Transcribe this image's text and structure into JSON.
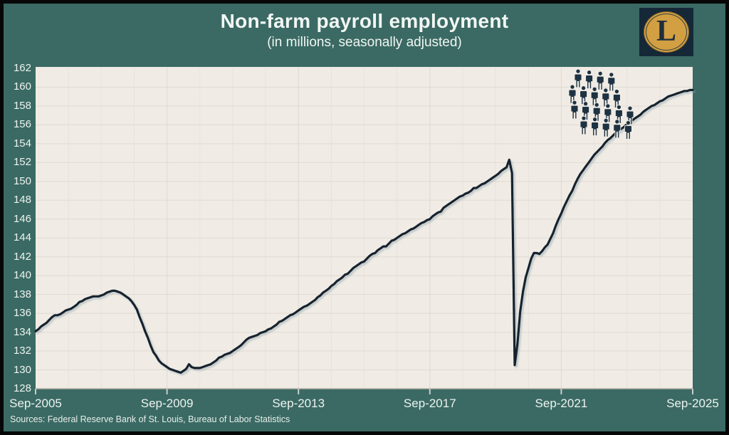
{
  "header": {
    "title": "Non-farm payroll employment",
    "subtitle": "(in millions, seasonally adjusted)"
  },
  "logo": {
    "letter": "L"
  },
  "footer": {
    "sources": "Sources: Federal Reserve Bank of St. Louis, Bureau of Labor Statistics"
  },
  "colors": {
    "background": "#3a6a63",
    "border": "#070707",
    "plot_bg": "#f0ece5",
    "grid_h": "#dfd9d1",
    "grid_v_minor": "#e7e2da",
    "grid_v_major": "#ded8d0",
    "axis": "#b3aea6",
    "tick": "#c7cec9",
    "line": "#18222e",
    "line_shadow": "#8fa2ab",
    "icon": "#1d3242",
    "text": "#f2f6f4",
    "logo_gold": "#d2a043",
    "logo_navy": "#152838"
  },
  "chart_data": {
    "type": "line",
    "title": "Non-farm payroll employment",
    "subtitle": "(in millions, seasonally adjusted)",
    "xlabel": "",
    "ylabel": "",
    "ylim": [
      128,
      162
    ],
    "y_ticks": [
      128,
      130,
      132,
      134,
      136,
      138,
      140,
      142,
      144,
      146,
      148,
      150,
      152,
      154,
      156,
      158,
      160,
      162
    ],
    "x_range": [
      "Sep-2005",
      "Sep-2025"
    ],
    "x_frequency": "monthly",
    "x_ticks": [
      {
        "label": "Sep-2005",
        "month": 0
      },
      {
        "label": "Sep-2009",
        "month": 48
      },
      {
        "label": "Sep-2013",
        "month": 96
      },
      {
        "label": "Sep-2017",
        "month": 144
      },
      {
        "label": "Sep-2021",
        "month": 192
      },
      {
        "label": "Sep-2025",
        "month": 240
      }
    ],
    "grid": "on",
    "legend": "none",
    "series": [
      {
        "name": "Non-farm payroll employment",
        "values": [
          134.1,
          134.3,
          134.6,
          134.8,
          135.0,
          135.3,
          135.6,
          135.8,
          135.8,
          135.9,
          136.1,
          136.3,
          136.4,
          136.5,
          136.7,
          136.9,
          137.2,
          137.3,
          137.5,
          137.6,
          137.7,
          137.8,
          137.8,
          137.8,
          137.9,
          138.0,
          138.2,
          138.3,
          138.4,
          138.4,
          138.3,
          138.2,
          138.0,
          137.8,
          137.6,
          137.3,
          136.9,
          136.4,
          135.6,
          134.9,
          134.1,
          133.4,
          132.6,
          131.9,
          131.5,
          131.0,
          130.7,
          130.5,
          130.3,
          130.1,
          130.0,
          129.9,
          129.8,
          129.7,
          129.9,
          130.1,
          130.6,
          130.3,
          130.2,
          130.2,
          130.2,
          130.3,
          130.4,
          130.5,
          130.6,
          130.8,
          131.0,
          131.3,
          131.4,
          131.6,
          131.7,
          131.8,
          132.0,
          132.2,
          132.4,
          132.6,
          132.9,
          133.2,
          133.4,
          133.5,
          133.6,
          133.7,
          133.9,
          134.0,
          134.1,
          134.3,
          134.4,
          134.6,
          134.8,
          135.1,
          135.2,
          135.4,
          135.6,
          135.8,
          135.9,
          136.1,
          136.3,
          136.5,
          136.7,
          136.8,
          137.0,
          137.2,
          137.4,
          137.7,
          137.9,
          138.2,
          138.4,
          138.6,
          138.9,
          139.1,
          139.4,
          139.6,
          139.8,
          140.1,
          140.2,
          140.5,
          140.8,
          141.0,
          141.2,
          141.4,
          141.5,
          141.8,
          142.1,
          142.3,
          142.4,
          142.7,
          142.9,
          143.1,
          143.1,
          143.4,
          143.7,
          143.8,
          144.0,
          144.2,
          144.4,
          144.5,
          144.7,
          144.9,
          145.0,
          145.2,
          145.4,
          145.6,
          145.7,
          145.9,
          146.0,
          146.3,
          146.5,
          146.7,
          146.8,
          147.2,
          147.4,
          147.6,
          147.8,
          148.0,
          148.2,
          148.4,
          148.5,
          148.7,
          148.8,
          149.0,
          149.3,
          149.3,
          149.5,
          149.7,
          149.8,
          150.0,
          150.2,
          150.4,
          150.6,
          150.8,
          151.1,
          151.3,
          151.5,
          152.3,
          150.9,
          130.5,
          132.8,
          136.2,
          138.3,
          139.8,
          140.8,
          141.8,
          142.4,
          142.4,
          142.3,
          142.6,
          143.0,
          143.3,
          143.9,
          144.5,
          145.3,
          146.0,
          146.6,
          147.3,
          147.9,
          148.5,
          149.0,
          149.7,
          150.3,
          150.8,
          151.2,
          151.6,
          152.0,
          152.4,
          152.8,
          153.1,
          153.4,
          153.7,
          154.1,
          154.4,
          154.6,
          154.9,
          155.2,
          155.4,
          155.6,
          155.8,
          156.1,
          156.3,
          156.5,
          156.7,
          156.9,
          157.1,
          157.4,
          157.6,
          157.8,
          158.0,
          158.1,
          158.3,
          158.5,
          158.6,
          158.8,
          159.0,
          159.1,
          159.2,
          159.3,
          159.4,
          159.5,
          159.6,
          159.6,
          159.7,
          159.7
        ]
      }
    ],
    "annotations": {
      "crowd_icon": {
        "description": "clip-art crowd of person silhouettes standing above the line near 2022-2023",
        "rows": [
          4,
          5,
          6,
          5
        ]
      }
    }
  }
}
